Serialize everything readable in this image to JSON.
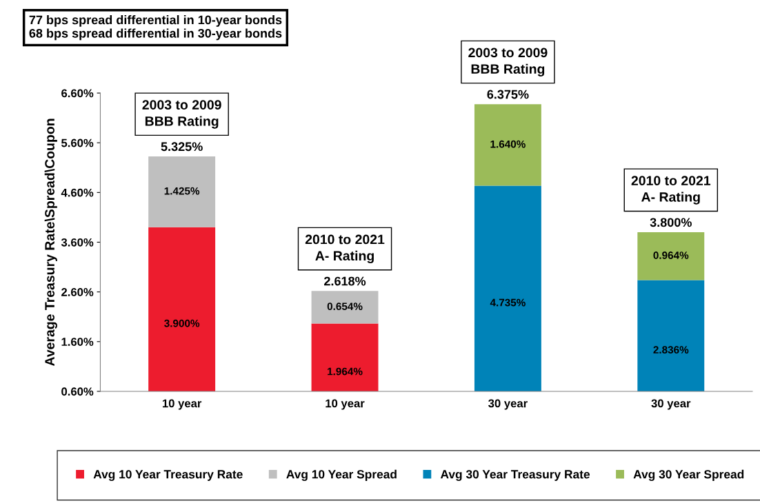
{
  "chart_data": {
    "type": "bar",
    "stacked": true,
    "ylabel": "Average Treasury Rate\\Spread\\Coupon",
    "categories": [
      "10 year",
      "10 year",
      "30 year",
      "30 year"
    ],
    "series": [
      {
        "name": "Avg 10 Year Treasury Rate",
        "color": "#ed1c2e",
        "values": [
          3.9,
          1.964,
          null,
          null
        ],
        "value_labels": [
          "3.900%",
          "1.964%",
          null,
          null
        ]
      },
      {
        "name": "Avg 10 Year Spread",
        "color": "#bfbfbf",
        "values": [
          1.425,
          0.654,
          null,
          null
        ],
        "value_labels": [
          "1.425%",
          "0.654%",
          null,
          null
        ]
      },
      {
        "name": "Avg 30 Year Treasury Rate",
        "color": "#0083b8",
        "values": [
          null,
          null,
          4.735,
          2.836
        ],
        "value_labels": [
          null,
          null,
          "4.735%",
          "2.836%"
        ]
      },
      {
        "name": "Avg 30 Year Spread",
        "color": "#9bbb59",
        "values": [
          null,
          null,
          1.64,
          0.964
        ],
        "value_labels": [
          null,
          null,
          "1.640%",
          "0.964%"
        ]
      }
    ],
    "totals": [
      "5.325%",
      "2.618%",
      "6.375%",
      "3.800%"
    ],
    "ylim": [
      0.6,
      6.6
    ],
    "yticks": [
      {
        "value": 0.6,
        "label": "0.60%"
      },
      {
        "value": 1.6,
        "label": "1.60%"
      },
      {
        "value": 2.6,
        "label": "2.60%"
      },
      {
        "value": 3.6,
        "label": "3.60%"
      },
      {
        "value": 4.6,
        "label": "4.60%"
      },
      {
        "value": 5.6,
        "label": "5.60%"
      },
      {
        "value": 6.6,
        "label": "6.60%"
      }
    ],
    "annotations": [
      "77 bps spread differential in 10-year bonds\n68 bps spread differential in 30-year bonds",
      "2003 to 2009\nBBB Rating",
      "2010 to 2021\nA- Rating",
      "2003 to 2009\nBBB Rating",
      "2010 to 2021\nA- Rating"
    ],
    "legend": "bottom",
    "grid": false
  }
}
